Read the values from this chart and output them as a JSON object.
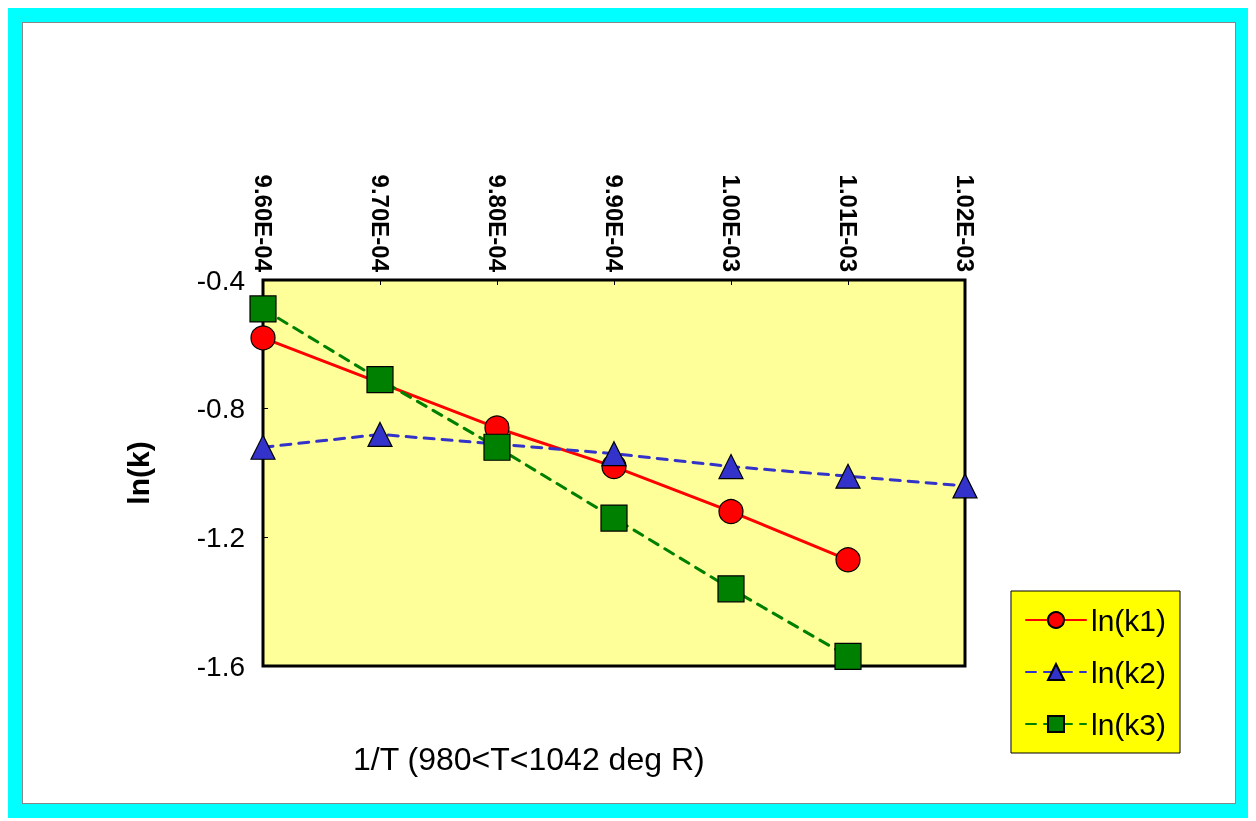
{
  "chart_data": {
    "type": "line",
    "xlabel": "1/T (980<T<1042 deg R)",
    "ylabel": "ln(k)",
    "x": [
      0.00096,
      0.00097,
      0.00098,
      0.00099,
      0.001,
      0.00101,
      0.00102
    ],
    "series": [
      {
        "name": "ln(k1)",
        "color": "#ff0000",
        "marker": "circle",
        "line_style": "solid",
        "values": [
          -0.58,
          null,
          -0.86,
          -0.98,
          -1.12,
          -1.27,
          null
        ]
      },
      {
        "name": "ln(k2)",
        "color": "#3333cc",
        "marker": "triangle",
        "line_style": "dashed",
        "values": [
          -0.92,
          -0.88,
          null,
          -0.94,
          -0.98,
          -1.01,
          -1.04
        ]
      },
      {
        "name": "ln(k3)",
        "color": "#008000",
        "marker": "square",
        "line_style": "dashed",
        "values": [
          -0.49,
          -0.71,
          -0.92,
          -1.14,
          -1.36,
          -1.57,
          null
        ]
      }
    ],
    "xlim": [
      0.00096,
      0.00102
    ],
    "xticks": [
      {
        "value": 0.00096,
        "label": "9.60E-04"
      },
      {
        "value": 0.00097,
        "label": "9.70E-04"
      },
      {
        "value": 0.00098,
        "label": "9.80E-04"
      },
      {
        "value": 0.00099,
        "label": "9.90E-04"
      },
      {
        "value": 0.001,
        "label": "1.00E-03"
      },
      {
        "value": 0.00101,
        "label": "1.01E-03"
      },
      {
        "value": 0.00102,
        "label": "1.02E-03"
      }
    ],
    "ylim": [
      -1.6,
      -0.4
    ],
    "yticks": [
      -1.6,
      -1.2,
      -0.8,
      -0.4
    ],
    "grid": false,
    "legend": "bottom right"
  }
}
